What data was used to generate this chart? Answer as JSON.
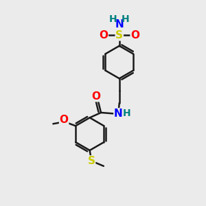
{
  "background_color": "#ebebeb",
  "bond_color": "#1a1a1a",
  "atom_colors": {
    "O": "#ff0000",
    "N": "#0000ff",
    "S_sulfonyl": "#cccc00",
    "S_thio": "#cccc00",
    "H": "#008080",
    "C": "#1a1a1a"
  },
  "figsize": [
    3.0,
    3.0
  ],
  "dpi": 100
}
